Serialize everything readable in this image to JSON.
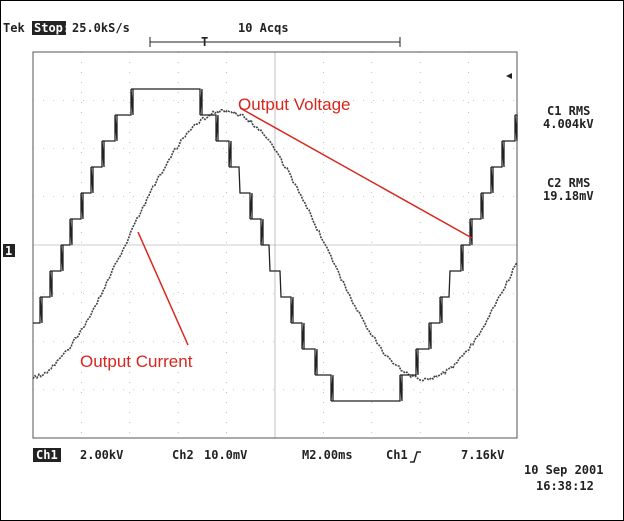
{
  "header": {
    "brand": "Tek",
    "state": "Stop:",
    "rate": "25.0kS/s",
    "acqs": "10 Acqs",
    "trigger": "T"
  },
  "annotations": {
    "voltage": "Output Voltage",
    "current": "Output Current"
  },
  "readouts": {
    "c1_label": "C1 RMS",
    "c1_value": "4.004kV",
    "c2_label": "C2 RMS",
    "c2_value": "19.18mV"
  },
  "marker": "1",
  "footer": {
    "ch1": "Ch1",
    "ch1_scale": "2.00kV",
    "ch2": "Ch2",
    "ch2_scale": "10.0mV",
    "timebase": "M2.00ms",
    "trig_source": "Ch1",
    "trig_level": "7.16kV",
    "date": "10 Sep 2001",
    "time": "16:38:12"
  }
}
